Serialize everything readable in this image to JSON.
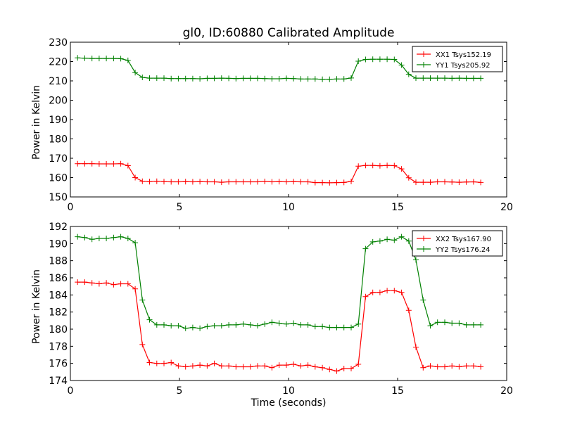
{
  "chart_data": [
    {
      "type": "line",
      "title": "gl0, ID:60880 Calibrated Amplitude",
      "xlabel": "",
      "ylabel": "Power in Kelvin",
      "xlim": [
        0,
        20
      ],
      "ylim": [
        150,
        230
      ],
      "xticks": [
        "0",
        "5",
        "10",
        "15",
        "20"
      ],
      "yticks": [
        "150",
        "160",
        "170",
        "180",
        "190",
        "200",
        "210",
        "220",
        "230"
      ],
      "legend_position": "top-right",
      "x": [
        0.33,
        0.66,
        0.99,
        1.32,
        1.65,
        1.98,
        2.31,
        2.64,
        2.97,
        3.3,
        3.63,
        3.96,
        4.29,
        4.62,
        4.95,
        5.28,
        5.61,
        5.94,
        6.27,
        6.6,
        6.93,
        7.26,
        7.59,
        7.92,
        8.25,
        8.58,
        8.91,
        9.24,
        9.57,
        9.9,
        10.23,
        10.56,
        10.89,
        11.22,
        11.55,
        11.88,
        12.21,
        12.54,
        12.87,
        13.2,
        13.53,
        13.86,
        14.19,
        14.52,
        14.85,
        15.18,
        15.51,
        15.84,
        16.17,
        16.5,
        16.83,
        17.16,
        17.49,
        17.82,
        18.15,
        18.48,
        18.81
      ],
      "series": [
        {
          "name": "XX1 Tsys152.19",
          "color": "#ff0000",
          "values": [
            167.2,
            167.2,
            167.2,
            167.1,
            167.1,
            167.1,
            167.2,
            166.2,
            160.0,
            158.1,
            157.9,
            158.1,
            157.9,
            157.8,
            157.8,
            157.9,
            157.8,
            157.9,
            157.8,
            157.8,
            157.6,
            157.8,
            157.8,
            157.8,
            157.8,
            157.8,
            158.0,
            157.8,
            157.9,
            157.8,
            157.9,
            157.8,
            157.8,
            157.4,
            157.4,
            157.3,
            157.4,
            157.5,
            158.0,
            165.9,
            166.3,
            166.3,
            166.1,
            166.3,
            166.2,
            164.5,
            159.9,
            157.6,
            157.6,
            157.6,
            157.8,
            157.8,
            157.7,
            157.6,
            157.7,
            157.8,
            157.5
          ]
        },
        {
          "name": "YY1 Tsys205.92",
          "color": "#008000",
          "values": [
            221.9,
            221.7,
            221.6,
            221.6,
            221.6,
            221.6,
            221.5,
            220.6,
            214.3,
            211.8,
            211.4,
            211.4,
            211.4,
            211.2,
            211.2,
            211.2,
            211.2,
            211.1,
            211.3,
            211.3,
            211.4,
            211.3,
            211.2,
            211.3,
            211.3,
            211.3,
            211.2,
            211.1,
            211.1,
            211.3,
            211.2,
            211.0,
            211.0,
            211.0,
            210.8,
            210.8,
            211.0,
            211.0,
            211.5,
            220.2,
            221.1,
            221.2,
            221.2,
            221.2,
            221.1,
            218.2,
            213.4,
            211.4,
            211.4,
            211.4,
            211.4,
            211.4,
            211.3,
            211.4,
            211.3,
            211.3,
            211.3
          ]
        }
      ]
    },
    {
      "type": "line",
      "title": "",
      "xlabel": "Time (seconds)",
      "ylabel": "Power in Kelvin",
      "xlim": [
        0,
        20
      ],
      "ylim": [
        174,
        192
      ],
      "xticks": [
        "0",
        "5",
        "10",
        "15",
        "20"
      ],
      "yticks": [
        "174",
        "176",
        "178",
        "180",
        "182",
        "184",
        "186",
        "188",
        "190",
        "192"
      ],
      "legend_position": "top-right",
      "x": [
        0.33,
        0.66,
        0.99,
        1.32,
        1.65,
        1.98,
        2.31,
        2.64,
        2.97,
        3.3,
        3.63,
        3.96,
        4.29,
        4.62,
        4.95,
        5.28,
        5.61,
        5.94,
        6.27,
        6.6,
        6.93,
        7.26,
        7.59,
        7.92,
        8.25,
        8.58,
        8.91,
        9.24,
        9.57,
        9.9,
        10.23,
        10.56,
        10.89,
        11.22,
        11.55,
        11.88,
        12.21,
        12.54,
        12.87,
        13.2,
        13.53,
        13.86,
        14.19,
        14.52,
        14.85,
        15.18,
        15.51,
        15.84,
        16.17,
        16.5,
        16.83,
        17.16,
        17.49,
        17.82,
        18.15,
        18.48,
        18.81
      ],
      "series": [
        {
          "name": "XX2 Tsys167.90",
          "color": "#ff0000",
          "values": [
            185.5,
            185.5,
            185.4,
            185.3,
            185.4,
            185.2,
            185.3,
            185.3,
            184.7,
            178.2,
            176.1,
            176.0,
            176.0,
            176.1,
            175.7,
            175.6,
            175.7,
            175.8,
            175.7,
            176.0,
            175.7,
            175.7,
            175.6,
            175.6,
            175.6,
            175.7,
            175.7,
            175.5,
            175.8,
            175.8,
            175.9,
            175.7,
            175.8,
            175.6,
            175.5,
            175.3,
            175.1,
            175.4,
            175.4,
            175.9,
            183.8,
            184.3,
            184.3,
            184.5,
            184.5,
            184.3,
            182.2,
            177.9,
            175.5,
            175.7,
            175.6,
            175.6,
            175.7,
            175.6,
            175.7,
            175.7,
            175.6
          ]
        },
        {
          "name": "YY2 Tsys176.24",
          "color": "#008000",
          "values": [
            190.8,
            190.7,
            190.5,
            190.6,
            190.6,
            190.7,
            190.8,
            190.6,
            190.1,
            183.4,
            181.1,
            180.5,
            180.5,
            180.4,
            180.4,
            180.1,
            180.2,
            180.1,
            180.3,
            180.4,
            180.4,
            180.5,
            180.5,
            180.6,
            180.5,
            180.4,
            180.6,
            180.8,
            180.7,
            180.6,
            180.7,
            180.5,
            180.5,
            180.3,
            180.3,
            180.2,
            180.2,
            180.2,
            180.2,
            180.6,
            189.4,
            190.2,
            190.3,
            190.5,
            190.4,
            190.8,
            190.3,
            188.1,
            183.4,
            180.4,
            180.8,
            180.8,
            180.7,
            180.7,
            180.5,
            180.5,
            180.5
          ]
        }
      ]
    }
  ]
}
